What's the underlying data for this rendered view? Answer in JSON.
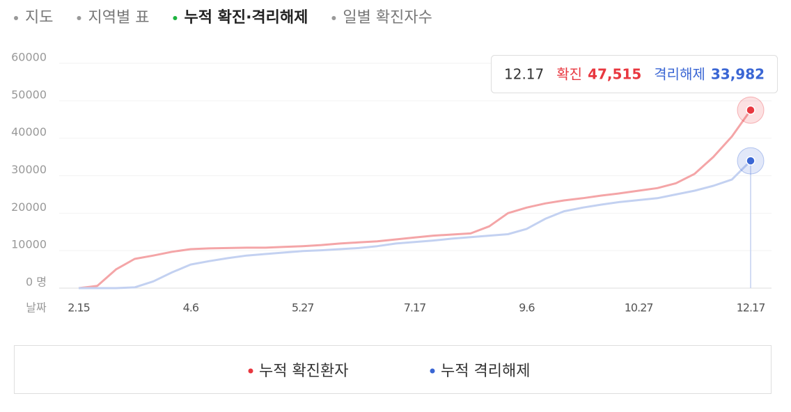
{
  "tabs": [
    {
      "label": "지도",
      "active": false
    },
    {
      "label": "지역별 표",
      "active": false
    },
    {
      "label": "누적 확진·격리해제",
      "active": true
    },
    {
      "label": "일별 확진자수",
      "active": false
    }
  ],
  "chart_data": {
    "type": "line",
    "xlabel": "날짜",
    "categories": [
      "2.15",
      null,
      null,
      null,
      null,
      null,
      "4.6",
      null,
      null,
      null,
      null,
      null,
      "5.27",
      null,
      null,
      null,
      null,
      null,
      "7.17",
      null,
      null,
      null,
      null,
      null,
      "9.6",
      null,
      null,
      null,
      null,
      null,
      "10.27",
      null,
      null,
      null,
      null,
      null,
      "12.17"
    ],
    "series": [
      {
        "name": "누적 확진환자",
        "color": "#e8373f",
        "line_color": "#f4a5a7",
        "values": [
          0,
          600,
          5000,
          7800,
          8700,
          9700,
          10400,
          10600,
          10700,
          10800,
          10800,
          11000,
          11200,
          11500,
          11900,
          12200,
          12500,
          13000,
          13500,
          14000,
          14300,
          14600,
          16500,
          20000,
          21500,
          22600,
          23400,
          24000,
          24700,
          25300,
          26000,
          26700,
          28000,
          30500,
          35000,
          40500,
          47515
        ],
        "value_labels": [
          null,
          null,
          null,
          null,
          null,
          null,
          null,
          null,
          null,
          null,
          null,
          null,
          null,
          null,
          null,
          null,
          null,
          null,
          null,
          null,
          null,
          null,
          null,
          null,
          null,
          null,
          null,
          null,
          null,
          null,
          null,
          null,
          null,
          null,
          null,
          null,
          "47,515"
        ]
      },
      {
        "name": "누적 격리해제",
        "color": "#3a66d4",
        "line_color": "#c3d1f1",
        "values": [
          0,
          0,
          0,
          200,
          1800,
          4200,
          6300,
          7200,
          8000,
          8700,
          9100,
          9500,
          9900,
          10100,
          10400,
          10700,
          11200,
          11900,
          12300,
          12700,
          13200,
          13600,
          14000,
          14400,
          15800,
          18500,
          20500,
          21500,
          22300,
          23000,
          23500,
          24000,
          25000,
          26000,
          27300,
          29000,
          33982
        ],
        "value_labels": [
          null,
          null,
          null,
          null,
          null,
          null,
          null,
          null,
          null,
          null,
          null,
          null,
          null,
          null,
          null,
          null,
          null,
          null,
          null,
          null,
          null,
          null,
          null,
          null,
          null,
          null,
          null,
          null,
          null,
          null,
          null,
          null,
          null,
          null,
          null,
          null,
          "33,982"
        ]
      }
    ],
    "tooltip": {
      "category_index": 36,
      "labels": [
        "확진",
        "격리해제"
      ]
    },
    "ylim": [
      0,
      60000
    ],
    "yticks": [
      {
        "value": 0,
        "label": "0 명"
      },
      10000,
      20000,
      30000,
      40000,
      50000,
      60000
    ],
    "grid": true,
    "legend": "bottom"
  }
}
